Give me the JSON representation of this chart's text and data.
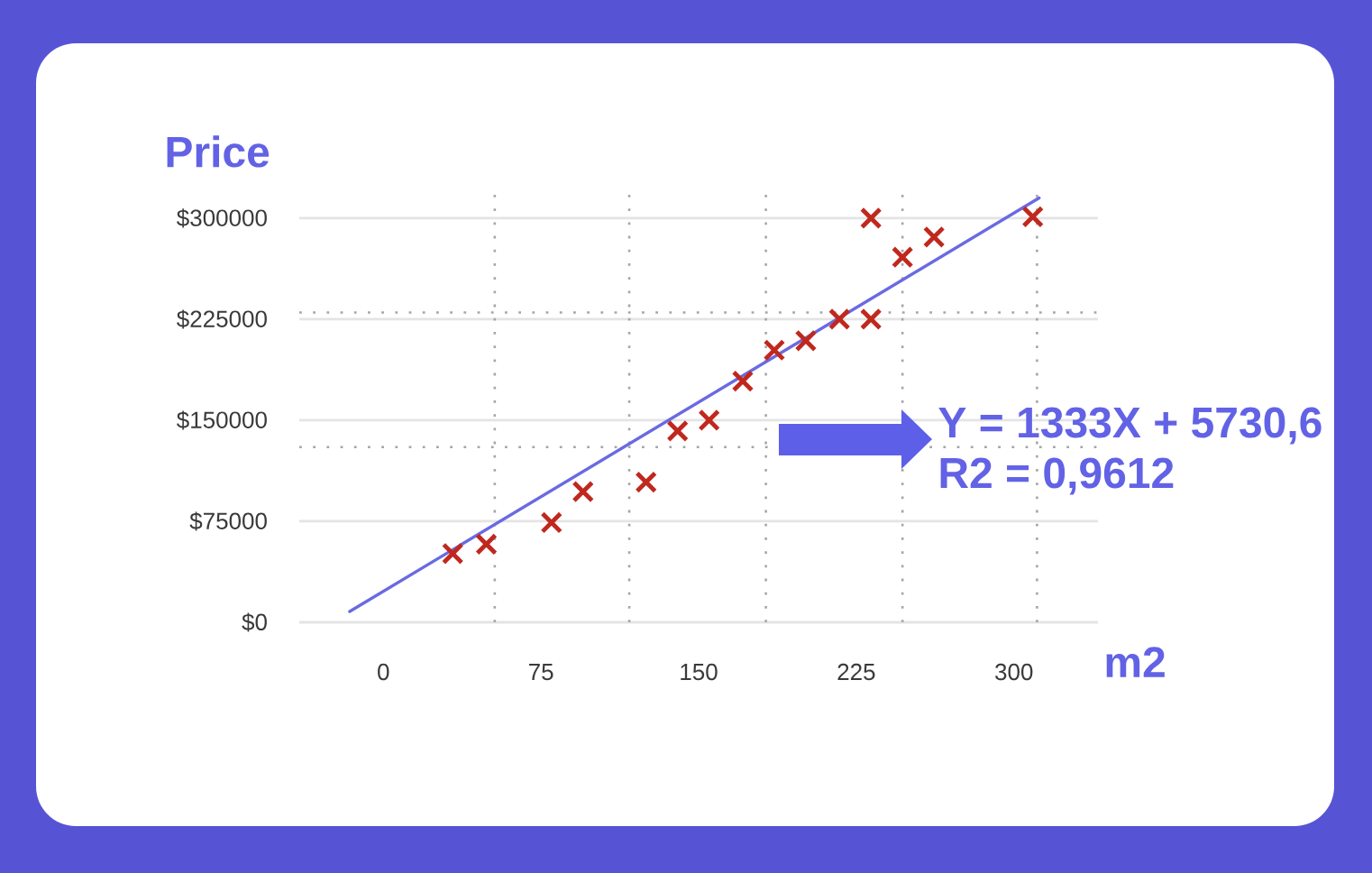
{
  "chart_data": {
    "type": "scatter",
    "xlabel": "m2",
    "ylabel": "Price",
    "annotations": [
      "Y = 1333X + 5730,6",
      "R2 = 0,9612"
    ],
    "xlim": [
      -40,
      340
    ],
    "ylim": [
      0,
      320000
    ],
    "xticks": [
      0,
      75,
      150,
      225,
      300
    ],
    "yticks": [
      {
        "value": 0,
        "label": "$0"
      },
      {
        "value": 75000,
        "label": "$75000"
      },
      {
        "value": 150000,
        "label": "$150000"
      },
      {
        "value": 225000,
        "label": "$225000"
      },
      {
        "value": 300000,
        "label": "$300000"
      }
    ],
    "grid": "y",
    "ref_lines": [
      {
        "axis": "x",
        "value": 53,
        "color": "#a6a6a6",
        "line_style": "dotted"
      },
      {
        "axis": "x",
        "value": 117,
        "color": "#a6a6a6",
        "line_style": "dotted"
      },
      {
        "axis": "x",
        "value": 182,
        "color": "#a6a6a6",
        "line_style": "dotted"
      },
      {
        "axis": "x",
        "value": 247,
        "color": "#a6a6a6",
        "line_style": "dotted"
      },
      {
        "axis": "x",
        "value": 311,
        "color": "#a6a6a6",
        "line_style": "dotted"
      },
      {
        "axis": "y",
        "value": 130000,
        "color": "#a6a6a6",
        "line_style": "dotted"
      },
      {
        "axis": "y",
        "value": 230000,
        "color": "#a6a6a6",
        "line_style": "dotted"
      }
    ],
    "series": [
      {
        "color": "#c0281e",
        "marker": "cross",
        "x": [
          33,
          49,
          80,
          95,
          125,
          140,
          155,
          171,
          186,
          201,
          217,
          232,
          232,
          247,
          262,
          309
        ],
        "values": [
          51000,
          58000,
          74000,
          97000,
          104000,
          142000,
          150000,
          179000,
          202000,
          209000,
          225000,
          300000,
          225000,
          271000,
          286000,
          301000
        ]
      },
      {
        "type": "line",
        "color": "#6a6ae2",
        "marker": "none",
        "line_style": "solid",
        "x": [
          -16,
          312
        ],
        "values": [
          8000,
          315000
        ]
      }
    ]
  }
}
